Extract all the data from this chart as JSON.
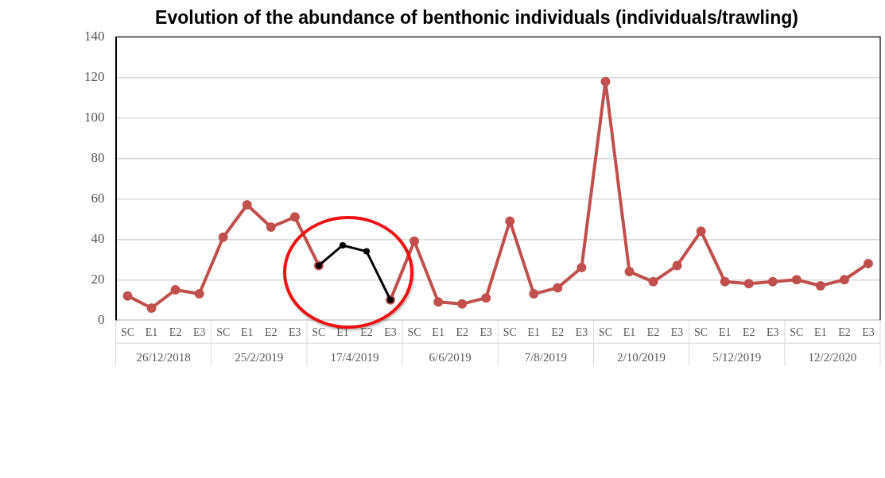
{
  "chart_data": {
    "type": "line",
    "title": "Evolution of the abundance of benthonic individuals (individuals/trawling)",
    "categories": [
      "SC",
      "E1",
      "E2",
      "E3",
      "SC",
      "E1",
      "E2",
      "E3",
      "SC",
      "E1",
      "E2",
      "E3",
      "SC",
      "E1",
      "E2",
      "E3",
      "SC",
      "E1",
      "E2",
      "E3",
      "SC",
      "E1",
      "E2",
      "E3",
      "SC",
      "E1",
      "E2",
      "E3",
      "SC",
      "E1",
      "E2",
      "E3"
    ],
    "series": [
      {
        "color": "#c0504d",
        "values": [
          12,
          6,
          15,
          13,
          41,
          57,
          46,
          51,
          27,
          null,
          null,
          10,
          39,
          9,
          8,
          11,
          49,
          13,
          16,
          26,
          118,
          24,
          19,
          27,
          44,
          19,
          18,
          19,
          20,
          17,
          20,
          28
        ]
      },
      {
        "color": "#000000",
        "values": [
          null,
          null,
          null,
          null,
          null,
          null,
          null,
          null,
          27,
          37,
          34,
          10,
          null,
          null,
          null,
          null,
          null,
          null,
          null,
          null,
          null,
          null,
          null,
          null,
          null,
          null,
          null,
          null,
          null,
          null,
          null,
          null
        ]
      }
    ],
    "annotations": [
      "26/12/2018",
      "25/2/2019",
      "17/4/2019",
      "6/6/2019",
      "7/8/2019",
      "2/10/2019",
      "5/12/2019",
      "12/2/2020"
    ],
    "ylim": [
      0,
      140
    ],
    "yticks": [
      0,
      20,
      40,
      60,
      80,
      100,
      120,
      140
    ],
    "grid": "y",
    "legend": false,
    "marker": "circle",
    "line_style": "solid"
  }
}
